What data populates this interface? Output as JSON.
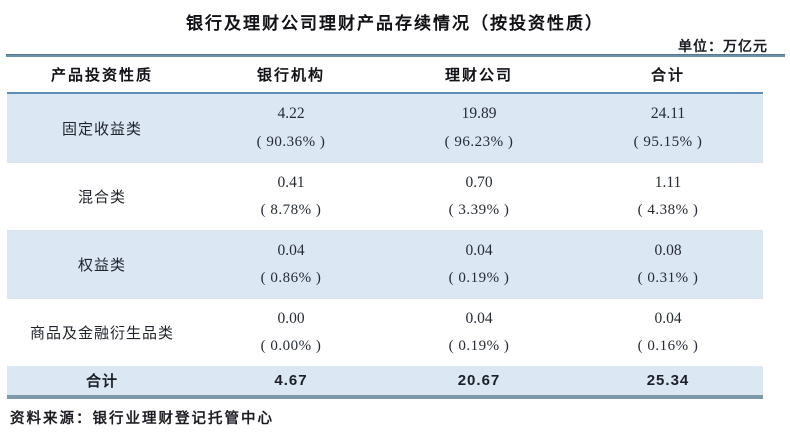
{
  "title": "银行及理财公司理财产品存续情况（按投资性质）",
  "unit_label": "单位：万亿元",
  "table": {
    "headers": [
      "产品投资性质",
      "银行机构",
      "理财公司",
      "合计"
    ],
    "rows": [
      {
        "category": "固定收益类",
        "cells": [
          {
            "value": "4.22",
            "pct": "( 90.36% )"
          },
          {
            "value": "19.89",
            "pct": "( 96.23% )"
          },
          {
            "value": "24.11",
            "pct": "( 95.15% )"
          }
        ]
      },
      {
        "category": "混合类",
        "cells": [
          {
            "value": "0.41",
            "pct": "( 8.78% )"
          },
          {
            "value": "0.70",
            "pct": "( 3.39% )"
          },
          {
            "value": "1.11",
            "pct": "( 4.38% )"
          }
        ]
      },
      {
        "category": "权益类",
        "cells": [
          {
            "value": "0.04",
            "pct": "( 0.86% )"
          },
          {
            "value": "0.04",
            "pct": "( 0.19% )"
          },
          {
            "value": "0.08",
            "pct": "( 0.31% )"
          }
        ]
      },
      {
        "category": "商品及金融衍生品类",
        "cells": [
          {
            "value": "0.00",
            "pct": "( 0.00% )"
          },
          {
            "value": "0.04",
            "pct": "( 0.19% )"
          },
          {
            "value": "0.04",
            "pct": "( 0.16% )"
          }
        ]
      }
    ],
    "total": {
      "label": "合计",
      "values": [
        "4.67",
        "20.67",
        "25.34"
      ]
    }
  },
  "source": "资料来源：银行业理财登记托管中心",
  "colors": {
    "row_fill_blue": "#dbe7f3",
    "header_rule_blue": "#5e8cb8",
    "top_rule": "#6a92ab",
    "bottom_rule": "#7c99a7",
    "text": "#15161c"
  },
  "chart_data": {
    "type": "table",
    "title": "银行及理财公司理财产品存续情况（按投资性质）",
    "unit": "万亿元",
    "columns": [
      "产品投资性质",
      "银行机构",
      "理财公司",
      "合计"
    ],
    "rows": [
      {
        "category": "固定收益类",
        "bank": 4.22,
        "bank_pct": "90.36%",
        "wmc": 19.89,
        "wmc_pct": "96.23%",
        "total": 24.11,
        "total_pct": "95.15%"
      },
      {
        "category": "混合类",
        "bank": 0.41,
        "bank_pct": "8.78%",
        "wmc": 0.7,
        "wmc_pct": "3.39%",
        "total": 1.11,
        "total_pct": "4.38%"
      },
      {
        "category": "权益类",
        "bank": 0.04,
        "bank_pct": "0.86%",
        "wmc": 0.04,
        "wmc_pct": "0.19%",
        "total": 0.08,
        "total_pct": "0.31%"
      },
      {
        "category": "商品及金融衍生品类",
        "bank": 0.0,
        "bank_pct": "0.00%",
        "wmc": 0.04,
        "wmc_pct": "0.19%",
        "total": 0.04,
        "total_pct": "0.16%"
      }
    ],
    "totals_row": {
      "category": "合计",
      "bank": 4.67,
      "wmc": 20.67,
      "total": 25.34
    },
    "source": "银行业理财登记托管中心",
    "layout": {
      "zebra_fill": true,
      "header_position": "top"
    }
  }
}
